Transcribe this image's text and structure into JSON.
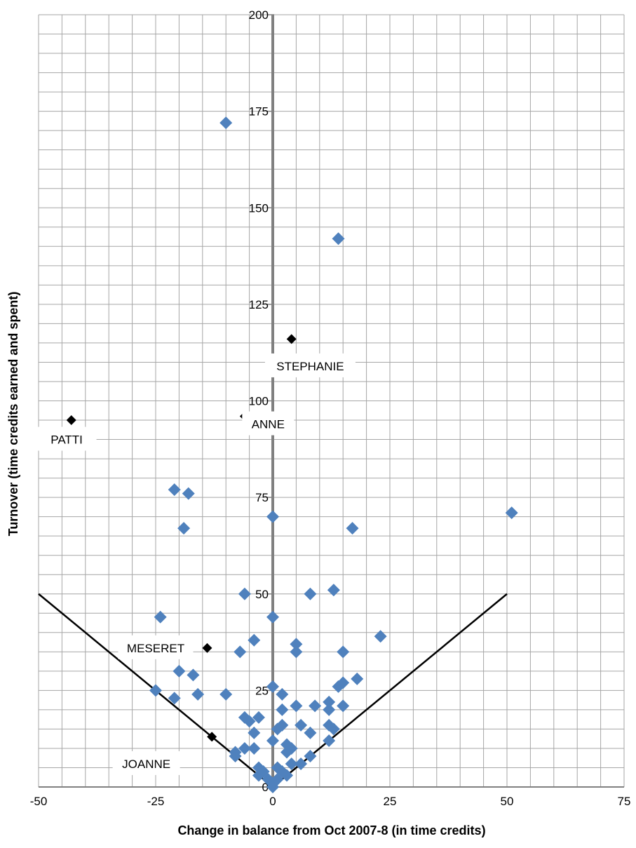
{
  "chart_data": {
    "type": "scatter",
    "title": "",
    "xlabel": "Change in balance from Oct 2007-8 (in time credits)",
    "ylabel": "Turnover (time credits earned and spent)",
    "xlim": [
      -50,
      75
    ],
    "ylim": [
      0,
      200
    ],
    "x_ticks": [
      -50,
      -25,
      0,
      25,
      50,
      75
    ],
    "y_ticks": [
      0,
      25,
      50,
      75,
      100,
      125,
      150,
      175,
      200
    ],
    "x_tick_labels": [
      "-50",
      "-25",
      "0",
      "25",
      "50",
      "75"
    ],
    "y_tick_labels": [
      "0",
      "25",
      "50",
      "75",
      "100",
      "125",
      "150",
      "175",
      "200"
    ],
    "grid": true,
    "minor_grid_step": {
      "x": 5,
      "y": 5
    },
    "colors": {
      "members": "#4f81bd",
      "highlighted": "#000000",
      "grid": "#a6a6a6",
      "zero_axis": "#808080",
      "boundary": "#000000"
    },
    "series": [
      {
        "points": [
          [
            -10,
            172
          ],
          [
            14,
            142
          ],
          [
            51,
            71
          ],
          [
            0,
            70
          ],
          [
            17,
            67
          ],
          [
            -21,
            77
          ],
          [
            -18,
            76
          ],
          [
            -19,
            67
          ],
          [
            8,
            50
          ],
          [
            13,
            51
          ],
          [
            -6,
            50
          ],
          [
            0,
            44
          ],
          [
            -24,
            44
          ],
          [
            23,
            39
          ],
          [
            -4,
            38
          ],
          [
            5,
            37
          ],
          [
            5,
            35
          ],
          [
            15,
            35
          ],
          [
            -7,
            35
          ],
          [
            -20,
            30
          ],
          [
            -17,
            29
          ],
          [
            18,
            28
          ],
          [
            15,
            27
          ],
          [
            14,
            26
          ],
          [
            0,
            26
          ],
          [
            -25,
            25
          ],
          [
            -16,
            24
          ],
          [
            -10,
            24
          ],
          [
            2,
            24
          ],
          [
            -21,
            23
          ],
          [
            12,
            22
          ],
          [
            9,
            21
          ],
          [
            15,
            21
          ],
          [
            5,
            21
          ],
          [
            2,
            20
          ],
          [
            12,
            20
          ],
          [
            -6,
            18
          ],
          [
            -3,
            18
          ],
          [
            -5,
            17
          ],
          [
            2,
            16
          ],
          [
            6,
            16
          ],
          [
            12,
            16
          ],
          [
            13,
            15
          ],
          [
            1,
            15
          ],
          [
            -4,
            14
          ],
          [
            8,
            14
          ],
          [
            0,
            12
          ],
          [
            12,
            12
          ],
          [
            -6,
            10
          ],
          [
            -4,
            10
          ],
          [
            3,
            11
          ],
          [
            4,
            10
          ],
          [
            3,
            9
          ],
          [
            -8,
            9
          ],
          [
            -8,
            8
          ],
          [
            8,
            8
          ],
          [
            6,
            6
          ],
          [
            4,
            6
          ],
          [
            -3,
            5
          ],
          [
            1,
            5
          ],
          [
            -2,
            4
          ],
          [
            2,
            4
          ],
          [
            -3,
            3
          ],
          [
            3,
            3
          ],
          [
            -1,
            2
          ],
          [
            1,
            2
          ],
          [
            0,
            1
          ],
          [
            0,
            0
          ]
        ]
      },
      {
        "points": [
          [
            -43,
            95
          ],
          [
            -6,
            96
          ],
          [
            4,
            116
          ],
          [
            -14,
            36
          ],
          [
            -13,
            13
          ]
        ],
        "labels": [
          "PATTI",
          "ANNE",
          "STEPHANIE",
          "MESERET",
          "JOANNE"
        ]
      }
    ],
    "boundary_lines": [
      {
        "from": [
          0,
          0
        ],
        "to": [
          -50,
          50
        ]
      },
      {
        "from": [
          0,
          0
        ],
        "to": [
          50,
          50
        ]
      }
    ],
    "annotations": [
      {
        "text": "PATTI",
        "x": -44,
        "y": 90
      },
      {
        "text": "ANNE",
        "x": -1,
        "y": 94
      },
      {
        "text": "STEPHANIE",
        "x": 8,
        "y": 109
      },
      {
        "text": "MESERET",
        "x": -25,
        "y": 36
      },
      {
        "text": "JOANNE",
        "x": -27,
        "y": 6
      }
    ]
  }
}
